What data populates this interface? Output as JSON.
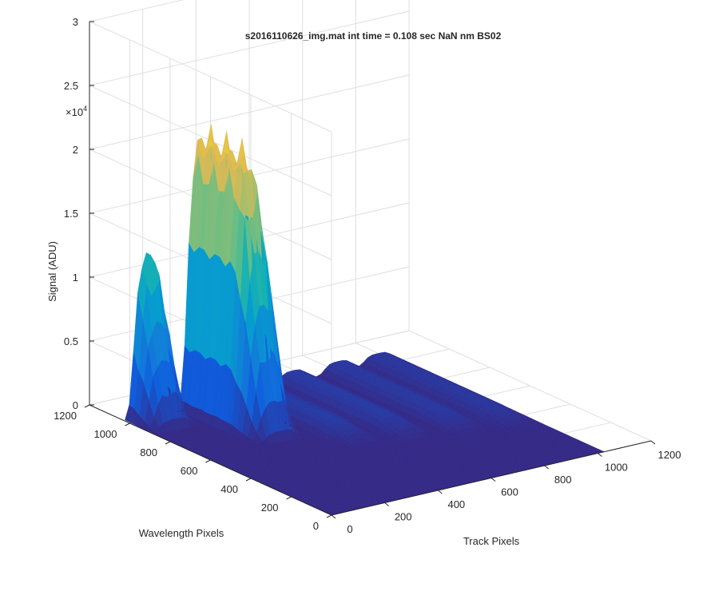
{
  "chart_data": {
    "type": "surface",
    "title": "s2016110626_img.mat int time = 0.108 sec  NaN nm BS02",
    "xlabel": "Track Pixels",
    "ylabel": "Wavelength Pixels",
    "zlabel": "Signal (ADU)",
    "z_multiplier_label": "×10",
    "z_multiplier_exponent": "4",
    "xlim": [
      0,
      1200
    ],
    "ylim": [
      0,
      1200
    ],
    "zlim": [
      0,
      30000
    ],
    "x_ticks": [
      "0",
      "200",
      "400",
      "600",
      "800",
      "1000",
      "1200"
    ],
    "y_ticks": [
      "0",
      "200",
      "400",
      "600",
      "800",
      "1000",
      "1200"
    ],
    "z_ticks": [
      "0",
      "0.5",
      "1",
      "1.5",
      "2",
      "2.5",
      "3"
    ],
    "grid": true,
    "colormap": "parula",
    "data_extent": {
      "track_pixels": [
        0,
        1024
      ],
      "wavelength_pixels": [
        0,
        1024
      ]
    },
    "peaks": [
      {
        "name": "",
        "track_center": 90,
        "max_signal": 15500,
        "wavelength_range_at_peak": [
          950,
          1024
        ]
      },
      {
        "name": "",
        "track_center": 290,
        "max_signal": 22000,
        "wavelength_range_at_peak": [
          700,
          1024
        ]
      },
      {
        "name": "",
        "track_center": 470,
        "max_signal": 1000,
        "wavelength_range_at_peak": [
          500,
          1024
        ]
      },
      {
        "name": "",
        "track_center": 630,
        "max_signal": 900,
        "wavelength_range_at_peak": [
          450,
          1024
        ]
      },
      {
        "name": "",
        "track_center": 800,
        "max_signal": 800,
        "wavelength_range_at_peak": [
          400,
          1024
        ]
      },
      {
        "name": "",
        "track_center": 950,
        "max_signal": 700,
        "wavelength_range_at_peak": [
          350,
          1024
        ]
      }
    ]
  }
}
